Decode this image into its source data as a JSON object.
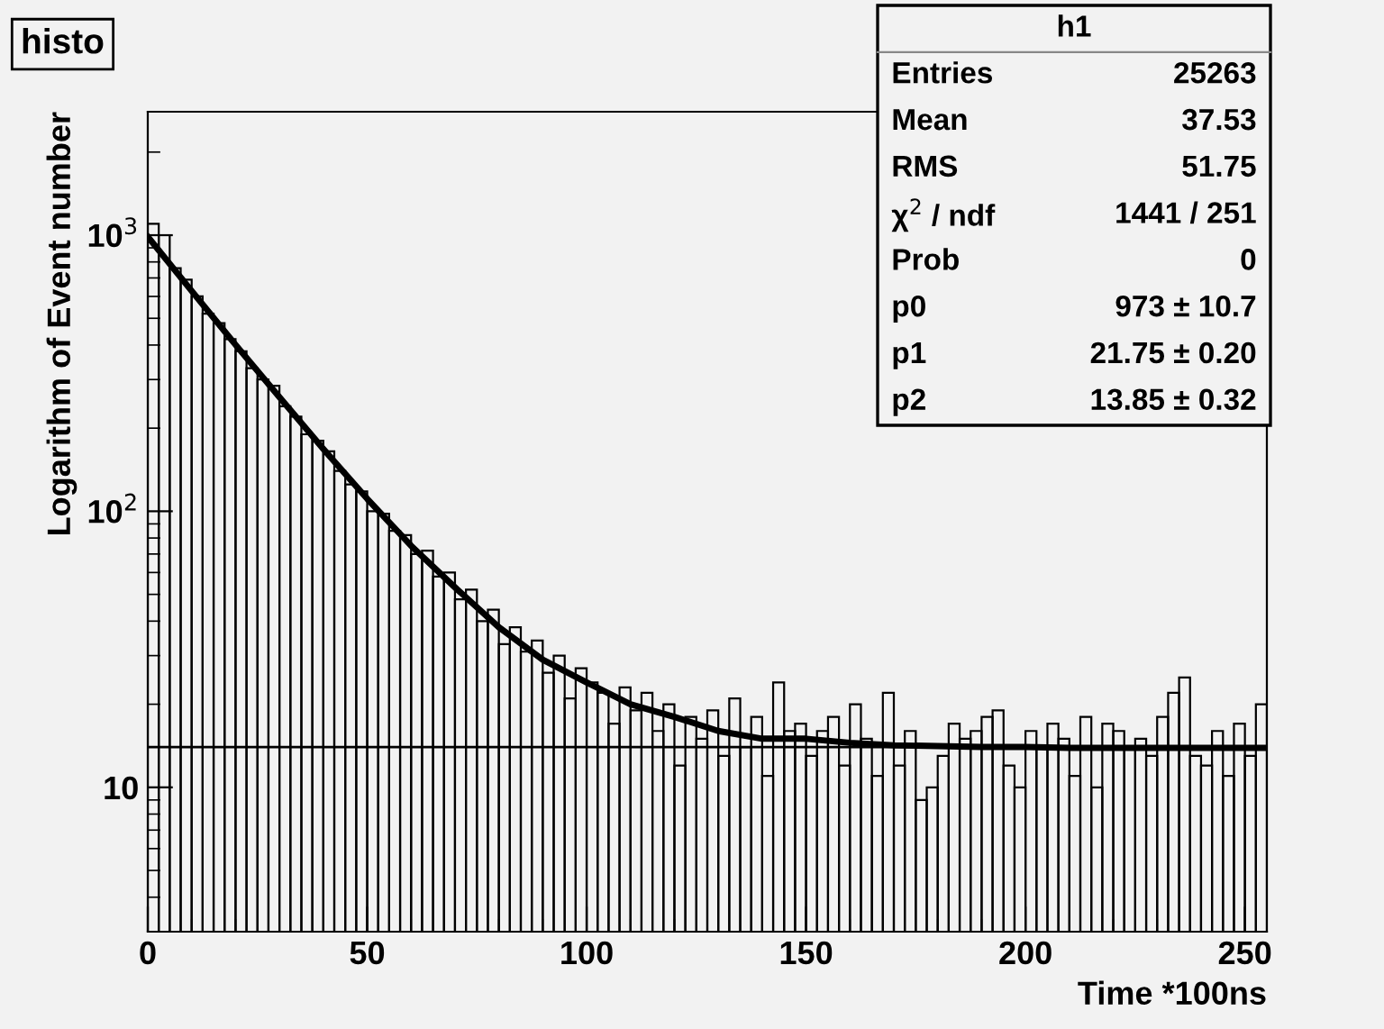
{
  "chart_data": {
    "type": "histogram",
    "title": "histo",
    "xlabel": "Time *100ns",
    "ylabel": "Logarithm of Event number",
    "bins": [
      0,
      2.5,
      5,
      7.5,
      10,
      12.5,
      15,
      17.5,
      20,
      22.5,
      25,
      27.5,
      30,
      32.5,
      35,
      37.5,
      40,
      42.5,
      45,
      47.5,
      50,
      52.5,
      55,
      57.5,
      60,
      62.5,
      65,
      67.5,
      70,
      72.5,
      75,
      77.5,
      80,
      82.5,
      85,
      87.5,
      90,
      92.5,
      95,
      97.5,
      100,
      102.5,
      105,
      107.5,
      110,
      112.5,
      115,
      117.5,
      120,
      122.5,
      125,
      127.5,
      130,
      132.5,
      135,
      137.5,
      140,
      142.5,
      145,
      147.5,
      150,
      152.5,
      155,
      157.5,
      160,
      162.5,
      165,
      167.5,
      170,
      172.5,
      175,
      177.5,
      180,
      182.5,
      185,
      187.5,
      190,
      192.5,
      195,
      197.5,
      200,
      202.5,
      205,
      207.5,
      210,
      212.5,
      215,
      217.5,
      220,
      222.5,
      225,
      227.5,
      230,
      232.5,
      235,
      237.5,
      240,
      242.5,
      245,
      247.5,
      250,
      252.5,
      255
    ],
    "values": [
      1100,
      1000,
      760,
      690,
      600,
      520,
      480,
      420,
      380,
      330,
      300,
      285,
      240,
      220,
      190,
      180,
      165,
      140,
      125,
      118,
      100,
      98,
      85,
      82,
      70,
      72,
      58,
      60,
      48,
      52,
      40,
      44,
      33,
      38,
      31,
      34,
      26,
      30,
      21,
      27,
      24,
      22,
      17,
      23,
      19,
      22,
      16,
      20,
      12,
      18,
      15,
      19,
      13,
      21,
      14,
      18,
      11,
      24,
      16,
      17,
      13,
      16,
      18,
      12,
      20,
      15,
      11,
      22,
      12,
      16,
      9,
      10,
      13,
      17,
      15,
      16,
      18,
      19,
      12,
      10,
      16,
      14,
      17,
      15,
      11,
      18,
      10,
      17,
      16,
      14,
      15,
      13,
      18,
      22,
      25,
      13,
      12,
      16,
      11,
      17,
      13,
      20
    ],
    "series": [
      {
        "type": "line",
        "color": "#000000",
        "x": [
          0,
          10,
          20,
          30,
          40,
          50,
          60,
          70,
          80,
          90,
          100,
          110,
          120,
          130,
          140,
          150,
          160,
          170,
          180,
          190,
          200,
          210,
          220,
          230,
          240,
          250,
          255
        ],
        "values": [
          987,
          628,
          401,
          259,
          168,
          111,
          75,
          53,
          38,
          29,
          24,
          20,
          18,
          16,
          15,
          15,
          14.5,
          14.2,
          14.1,
          14,
          14,
          13.9,
          13.9,
          13.9,
          13.9,
          13.9,
          13.9
        ]
      }
    ],
    "color": "#000000",
    "log": true,
    "xlim": [
      0,
      255
    ],
    "ylim": [
      3,
      2800
    ],
    "xticks": [
      0,
      50,
      100,
      150,
      200,
      250
    ],
    "yticks": [
      10,
      {
        "value": 100,
        "label": "10$^{2}$"
      },
      {
        "value": 1000,
        "label": "10$^{3}$"
      }
    ],
    "ref_lines": [
      {
        "axis": "y",
        "value": 14,
        "color": "#000000"
      }
    ],
    "annotations": [
      "h1",
      "Entries",
      "25263",
      "Mean",
      "37.53",
      "RMS",
      "51.75",
      "χ$^{2}$ / ndf",
      "1441 / 251",
      "Prob",
      "0",
      "p0",
      "973 ± 10.7",
      "p1",
      "21.75 ± 0.20",
      "p2",
      "13.85 ± 0.32"
    ],
    "grid": false,
    "legend": false
  }
}
